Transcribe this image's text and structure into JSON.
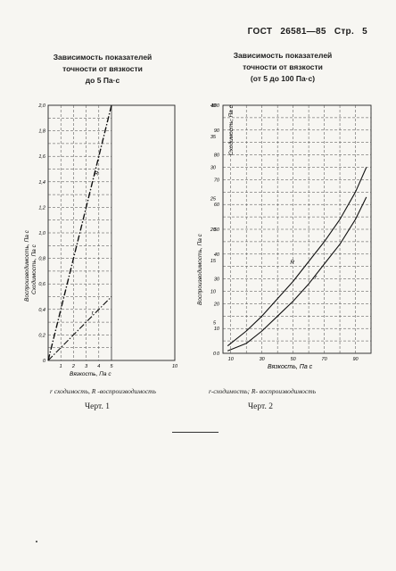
{
  "header": {
    "standard": "ГОСТ",
    "number": "26581—85",
    "page_label": "Стр.",
    "page_number": "5"
  },
  "figure1": {
    "title_lines": [
      "Зависимость показателей",
      "точности от вязкости",
      "до 5 Па·с"
    ],
    "caption": "r  сходимость, R -воспроизводимость",
    "label": "Черт. 1"
  },
  "figure2": {
    "title_lines": [
      "Зависимость показателей",
      "точности от вязкости",
      "(от 5 до 100 Па·с)"
    ],
    "caption": "r-сходимость; R- воспроизводимость",
    "label": "Черт. 2"
  },
  "chart_data": [
    {
      "type": "line",
      "xlabel": "Вязкость, Па с",
      "ylabel_outer": "Воспроизводимость, Па с",
      "ylabel_inner": "Сходимость, Па с",
      "x_ticks": [
        "1",
        "2",
        "3",
        "4",
        "5",
        "10"
      ],
      "y_ticks": [
        "0",
        "0,2",
        "0,4",
        "0,6",
        "0,8",
        "1,0",
        "1,2",
        "1,4",
        "1,6",
        "1,8",
        "2,0"
      ],
      "xlim": [
        0,
        10
      ],
      "ylim": [
        0,
        2.0
      ],
      "grid": true,
      "series": [
        {
          "name": "R",
          "x": [
            0,
            5
          ],
          "y": [
            0,
            2.0
          ]
        },
        {
          "name": "r",
          "x": [
            0,
            5
          ],
          "y": [
            0,
            0.5
          ]
        }
      ]
    },
    {
      "type": "line",
      "xlabel": "Вязкость, Па с",
      "ylabel_outer": "Воспроизводимость, Па с",
      "ylabel_inner": "Сходимость, Па с",
      "x_ticks": [
        "10",
        "30",
        "50",
        "70",
        "90"
      ],
      "y_ticks_left": [
        "0",
        "10",
        "20",
        "30",
        "40",
        "50",
        "60",
        "70",
        "80",
        "90",
        "100"
      ],
      "y_ticks_right": [
        "0",
        "5",
        "10",
        "15",
        "20",
        "25",
        "30",
        "35",
        "40"
      ],
      "xlim": [
        5,
        100
      ],
      "ylim_left": [
        0,
        100
      ],
      "ylim_right": [
        0,
        40
      ],
      "grid": true,
      "series": [
        {
          "name": "R",
          "x": [
            8,
            20,
            30,
            40,
            50,
            60,
            70,
            80,
            90,
            97
          ],
          "y": [
            3,
            9,
            15,
            22,
            29,
            37,
            45,
            54,
            65,
            75
          ]
        },
        {
          "name": "r",
          "x": [
            8,
            20,
            30,
            40,
            50,
            60,
            70,
            80,
            90,
            97
          ],
          "y": [
            1,
            4,
            9,
            15,
            21,
            28,
            36,
            44,
            54,
            63
          ]
        }
      ]
    }
  ]
}
